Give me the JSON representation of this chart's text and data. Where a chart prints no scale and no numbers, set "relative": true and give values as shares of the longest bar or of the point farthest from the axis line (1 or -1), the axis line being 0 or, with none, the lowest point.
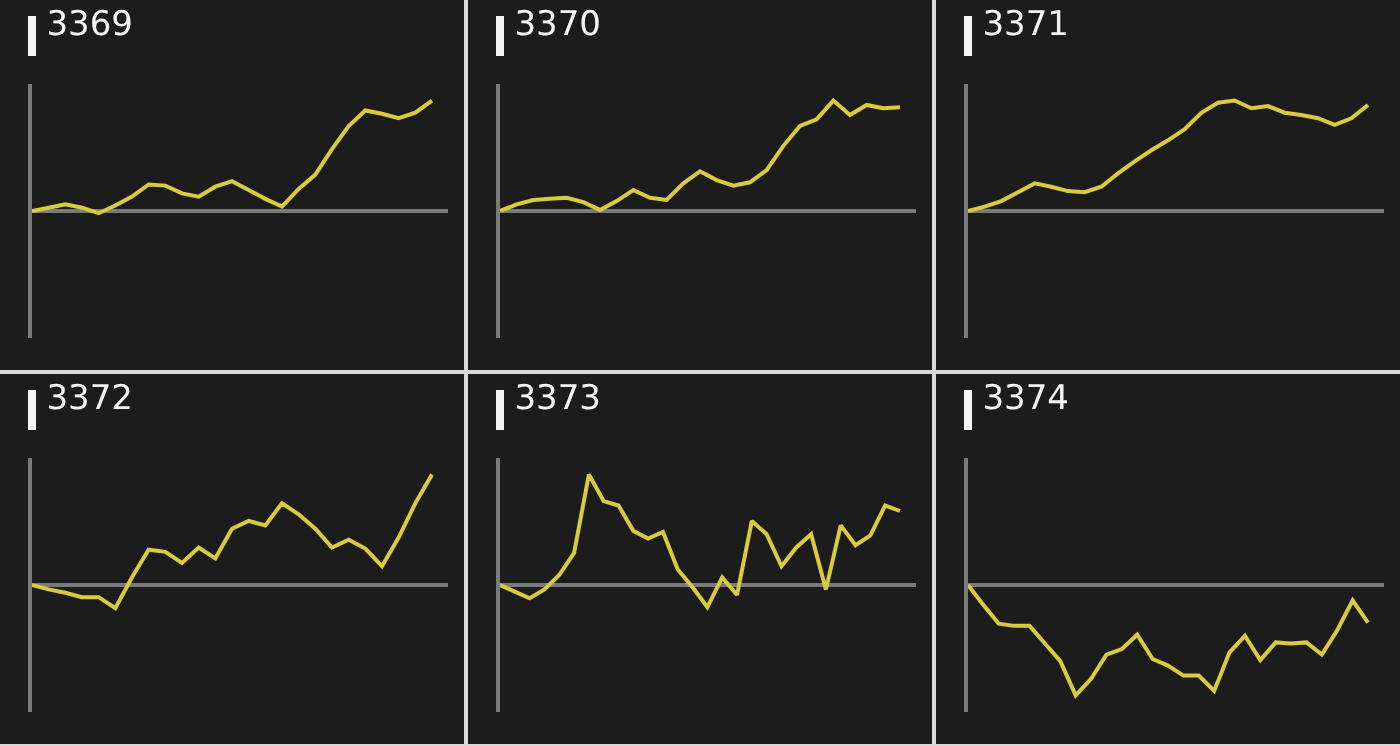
{
  "chart_data": [
    {
      "type": "line",
      "title": "3369",
      "relative": true,
      "color": "#d9cb3c",
      "categories": [
        null,
        null,
        null,
        null,
        null,
        null,
        null,
        null,
        null,
        null,
        null,
        null,
        null,
        null,
        null,
        null,
        null,
        null,
        null,
        null,
        null,
        null,
        null,
        null,
        null
      ],
      "values": [
        0,
        0.03,
        0.06,
        0.03,
        -0.02,
        0.05,
        0.13,
        0.24,
        0.23,
        0.16,
        0.13,
        0.22,
        0.27,
        0.19,
        0.11,
        0.04,
        0.2,
        0.33,
        0.56,
        0.77,
        0.91,
        0.88,
        0.84,
        0.89,
        1
      ]
    },
    {
      "type": "line",
      "title": "3370",
      "relative": true,
      "color": "#d9cb3c",
      "categories": [
        null,
        null,
        null,
        null,
        null,
        null,
        null,
        null,
        null,
        null,
        null,
        null,
        null,
        null,
        null,
        null,
        null,
        null,
        null,
        null,
        null,
        null,
        null,
        null,
        null
      ],
      "values": [
        0,
        0.06,
        0.1,
        0.11,
        0.12,
        0.08,
        0.01,
        0.09,
        0.19,
        0.12,
        0.1,
        0.25,
        0.36,
        0.28,
        0.23,
        0.26,
        0.37,
        0.59,
        0.77,
        0.83,
        1,
        0.87,
        0.96,
        0.93,
        0.94
      ]
    },
    {
      "type": "line",
      "title": "3371",
      "relative": true,
      "color": "#d9cb3c",
      "categories": [
        null,
        null,
        null,
        null,
        null,
        null,
        null,
        null,
        null,
        null,
        null,
        null,
        null,
        null,
        null,
        null,
        null,
        null,
        null,
        null,
        null,
        null,
        null,
        null,
        null
      ],
      "values": [
        0,
        0.04,
        0.09,
        0.17,
        0.25,
        0.22,
        0.18,
        0.17,
        0.22,
        0.34,
        0.45,
        0.55,
        0.64,
        0.74,
        0.89,
        0.98,
        1,
        0.93,
        0.95,
        0.89,
        0.87,
        0.84,
        0.78,
        0.84,
        0.96
      ]
    },
    {
      "type": "line",
      "title": "3372",
      "relative": true,
      "color": "#d9cb3c",
      "categories": [
        null,
        null,
        null,
        null,
        null,
        null,
        null,
        null,
        null,
        null,
        null,
        null,
        null,
        null,
        null,
        null,
        null,
        null,
        null,
        null,
        null,
        null,
        null,
        null,
        null
      ],
      "values": [
        0,
        -0.04,
        -0.07,
        -0.11,
        -0.11,
        -0.21,
        0.07,
        0.32,
        0.3,
        0.2,
        0.34,
        0.24,
        0.51,
        0.58,
        0.54,
        0.74,
        0.64,
        0.51,
        0.34,
        0.41,
        0.33,
        0.17,
        0.43,
        0.74,
        1
      ]
    },
    {
      "type": "line",
      "title": "3373",
      "relative": true,
      "color": "#d9cb3c",
      "categories": [
        null,
        null,
        null,
        null,
        null,
        null,
        null,
        null,
        null,
        null,
        null,
        null,
        null,
        null,
        null,
        null,
        null,
        null,
        null,
        null,
        null,
        null,
        null,
        null,
        null,
        null,
        null,
        null
      ],
      "values": [
        0,
        -0.06,
        -0.12,
        -0.04,
        0.09,
        0.29,
        1,
        0.76,
        0.72,
        0.49,
        0.42,
        0.48,
        0.14,
        -0.02,
        -0.2,
        0.07,
        -0.09,
        0.58,
        0.46,
        0.17,
        0.34,
        0.46,
        -0.04,
        0.54,
        0.36,
        0.45,
        0.72,
        0.67
      ]
    },
    {
      "type": "line",
      "title": "3374",
      "relative": true,
      "color": "#d9cb3c",
      "categories": [
        null,
        null,
        null,
        null,
        null,
        null,
        null,
        null,
        null,
        null,
        null,
        null,
        null,
        null,
        null,
        null,
        null,
        null,
        null,
        null,
        null,
        null,
        null,
        null,
        null,
        null,
        null
      ],
      "values": [
        0,
        -0.18,
        -0.35,
        -0.37,
        -0.37,
        -0.53,
        -0.69,
        -1,
        -0.85,
        -0.63,
        -0.58,
        -0.45,
        -0.67,
        -0.73,
        -0.82,
        -0.82,
        -0.96,
        -0.61,
        -0.46,
        -0.68,
        -0.52,
        -0.53,
        -0.52,
        -0.63,
        -0.41,
        -0.14,
        -0.34
      ]
    }
  ]
}
